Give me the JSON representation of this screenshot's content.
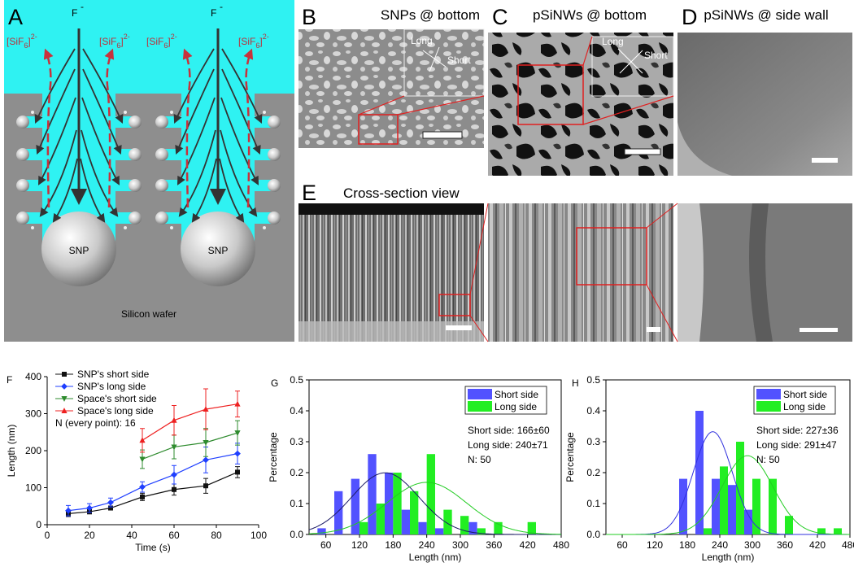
{
  "panels": {
    "A": {
      "label": "A",
      "fluoride": "F",
      "fluoride_sup": "-",
      "sif_open": "[SiF",
      "sif_sub": "6",
      "sif_close": "]",
      "sif_sup": "2-",
      "particle": "SNP",
      "substrate": "Silicon wafer"
    },
    "B": {
      "label": "B",
      "title": "SNPs @ bottom",
      "long": "Long",
      "short": "Short"
    },
    "C": {
      "label": "C",
      "title": "pSiNWs @ bottom",
      "long": "Long",
      "short": "Short"
    },
    "D": {
      "label": "D",
      "title": "pSiNWs @ side wall"
    },
    "E": {
      "label": "E",
      "title": "Cross-section view"
    }
  },
  "chart_data": [
    {
      "type": "line",
      "label": "F",
      "x": [
        10,
        20,
        30,
        45,
        60,
        75,
        90
      ],
      "xlabel": "Time (s)",
      "ylabel": "Length (nm)",
      "xlim": [
        0,
        100
      ],
      "xticks": [
        0,
        20,
        40,
        60,
        80,
        100
      ],
      "ylim": [
        0,
        400
      ],
      "yticks": [
        0,
        100,
        200,
        300,
        400
      ],
      "legend": "upper left",
      "annotation": "N (every point): 16",
      "series": [
        {
          "name": "SNP's short side",
          "color": "#111111",
          "marker": "square",
          "values": [
            30,
            35,
            45,
            75,
            95,
            105,
            142
          ],
          "errors": [
            8,
            6,
            5,
            10,
            15,
            20,
            15
          ]
        },
        {
          "name": "SNP's long side",
          "color": "#1f3fff",
          "marker": "diamond",
          "values": [
            38,
            45,
            60,
            102,
            135,
            175,
            192
          ],
          "errors": [
            14,
            12,
            12,
            14,
            25,
            35,
            28
          ]
        },
        {
          "name": "Space's short side",
          "color": "#2e8b2e",
          "marker": "triangle-down",
          "values": [
            null,
            null,
            null,
            177,
            210,
            222,
            248
          ],
          "errors": [
            null,
            null,
            null,
            25,
            32,
            38,
            33
          ]
        },
        {
          "name": "Space's long side",
          "color": "#ee2020",
          "marker": "triangle-up",
          "values": [
            null,
            null,
            null,
            228,
            282,
            312,
            326
          ],
          "errors": [
            null,
            null,
            null,
            32,
            40,
            55,
            35
          ]
        }
      ]
    },
    {
      "type": "bar",
      "label": "G",
      "x": [
        60,
        90,
        120,
        150,
        180,
        210,
        240,
        270,
        300,
        330,
        360,
        390,
        420
      ],
      "xlabel": "Length (nm)",
      "ylabel": "Percentage",
      "xlim": [
        30,
        480
      ],
      "xticks": [
        60,
        120,
        180,
        240,
        300,
        360,
        420,
        480
      ],
      "ylim": [
        0,
        0.5
      ],
      "yticks": [
        {
          "value": 0,
          "label": "0.0"
        },
        0.1,
        0.2,
        0.3,
        0.4,
        0.5
      ],
      "legend": "upper right",
      "annotations": [
        "Short side: 166±60",
        "Long side: 240±71",
        "N: 50"
      ],
      "series": [
        {
          "name": "Short side",
          "color": "#5252ff",
          "curve_color": "#1a1a66",
          "values": [
            0.02,
            0.14,
            0.18,
            0.26,
            0.2,
            0.08,
            0.04,
            0.02,
            0,
            0.04,
            0,
            0,
            0
          ],
          "fit": {
            "mean": 166,
            "sd": 60
          }
        },
        {
          "name": "Long side",
          "color": "#22ee22",
          "curve_color": "#22cc22",
          "values": [
            0,
            0,
            0.04,
            0.1,
            0.2,
            0.14,
            0.26,
            0.08,
            0.06,
            0.02,
            0.04,
            0,
            0.04
          ],
          "fit": {
            "mean": 240,
            "sd": 71
          }
        }
      ]
    },
    {
      "type": "bar",
      "label": "H",
      "x": [
        180,
        210,
        240,
        270,
        300,
        330,
        360,
        390,
        420,
        450
      ],
      "xlabel": "Length (nm)",
      "ylabel": "Percentage",
      "xlim": [
        30,
        480
      ],
      "xticks": [
        60,
        120,
        180,
        240,
        300,
        360,
        420,
        480
      ],
      "ylim": [
        0,
        0.5
      ],
      "yticks": [
        {
          "value": 0,
          "label": "0.0"
        },
        0.1,
        0.2,
        0.3,
        0.4,
        0.5
      ],
      "legend": "upper right",
      "annotations": [
        "Short side: 227±36",
        "Long side: 291±47",
        "N: 50"
      ],
      "series": [
        {
          "name": "Short side",
          "color": "#5252ff",
          "curve_color": "#3030dd",
          "values": [
            0.18,
            0.4,
            0.18,
            0.16,
            0.08,
            0,
            0,
            0,
            0,
            0
          ],
          "fit": {
            "mean": 227,
            "sd": 36
          }
        },
        {
          "name": "Long side",
          "color": "#22ee22",
          "curve_color": "#22cc22",
          "values": [
            0,
            0.02,
            0.22,
            0.3,
            0.18,
            0.18,
            0.06,
            0,
            0.02,
            0.02
          ],
          "fit": {
            "mean": 291,
            "sd": 47
          }
        }
      ]
    }
  ]
}
